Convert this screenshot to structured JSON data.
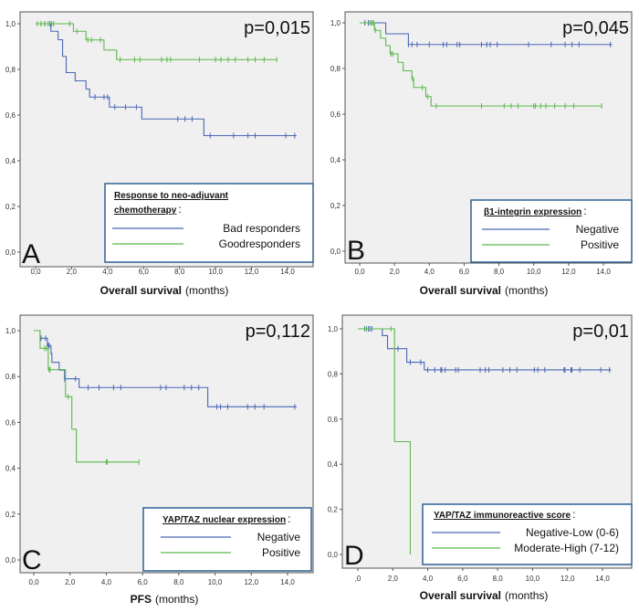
{
  "colors": {
    "series_1": "#4a66b5",
    "series_2": "#5cb84a",
    "plot_bg": "#f0f0f0",
    "legend_border": "#2e6095"
  },
  "chart_data": [
    {
      "type": "line",
      "subtype": "kaplan-meier step",
      "panel_letter": "A",
      "p_value": "p=0,015",
      "xlabel_bold": "Overall survival",
      "xlabel_unit": "(months)",
      "xlim": [
        0,
        15.5
      ],
      "ylim": [
        0,
        1
      ],
      "x_ticks": [
        "0,0",
        "2,0",
        "4,0",
        "6,0",
        "8,0",
        "10,0",
        "12,0",
        "14,0"
      ],
      "y_ticks": [
        "0,0",
        "0,2",
        "0,4",
        "0,6",
        "0,8",
        "1,0"
      ],
      "legend_title": [
        "Response to neo-adjuvant",
        "chemotherapy"
      ],
      "legend_title_suffix": ":",
      "series": [
        {
          "name": "Bad responders",
          "color": "#4a66b5",
          "steps": [
            [
              0,
              1
            ],
            [
              0.85,
              0.967
            ],
            [
              1.25,
              0.93
            ],
            [
              1.5,
              0.857
            ],
            [
              1.7,
              0.786
            ],
            [
              2.2,
              0.75
            ],
            [
              2.8,
              0.714
            ],
            [
              3.0,
              0.679
            ],
            [
              4.1,
              0.635
            ],
            [
              5.9,
              0.583
            ],
            [
              9.35,
              0.51
            ],
            [
              14.5,
              0.51
            ]
          ],
          "censored": [
            [
              0.3,
              1
            ],
            [
              0.5,
              1
            ],
            [
              0.8,
              1
            ],
            [
              3.3,
              0.679
            ],
            [
              3.8,
              0.679
            ],
            [
              4.0,
              0.679
            ],
            [
              4.4,
              0.635
            ],
            [
              5.0,
              0.635
            ],
            [
              5.6,
              0.635
            ],
            [
              7.9,
              0.583
            ],
            [
              8.3,
              0.583
            ],
            [
              8.7,
              0.583
            ],
            [
              9.7,
              0.51
            ],
            [
              11.0,
              0.51
            ],
            [
              11.8,
              0.51
            ],
            [
              12.2,
              0.51
            ],
            [
              13.9,
              0.51
            ],
            [
              14.4,
              0.51
            ]
          ]
        },
        {
          "name": "Goodresponders",
          "color": "#5cb84a",
          "steps": [
            [
              0,
              1
            ],
            [
              2.1,
              0.967
            ],
            [
              2.8,
              0.929
            ],
            [
              3.8,
              0.885
            ],
            [
              4.5,
              0.843
            ],
            [
              13.4,
              0.843
            ]
          ],
          "censored": [
            [
              0.1,
              1
            ],
            [
              0.3,
              1
            ],
            [
              0.5,
              1
            ],
            [
              0.7,
              1
            ],
            [
              0.9,
              1
            ],
            [
              1.0,
              1
            ],
            [
              1.9,
              1
            ],
            [
              2.3,
              0.967
            ],
            [
              2.9,
              0.929
            ],
            [
              3.1,
              0.929
            ],
            [
              3.6,
              0.929
            ],
            [
              4.7,
              0.843
            ],
            [
              5.5,
              0.843
            ],
            [
              5.8,
              0.843
            ],
            [
              7.0,
              0.843
            ],
            [
              7.3,
              0.843
            ],
            [
              7.5,
              0.843
            ],
            [
              9.1,
              0.843
            ],
            [
              10.0,
              0.843
            ],
            [
              10.3,
              0.843
            ],
            [
              10.7,
              0.843
            ],
            [
              11.1,
              0.843
            ],
            [
              11.8,
              0.843
            ],
            [
              12.2,
              0.843
            ],
            [
              12.7,
              0.843
            ],
            [
              13.4,
              0.843
            ]
          ]
        }
      ]
    },
    {
      "type": "line",
      "subtype": "kaplan-meier step",
      "panel_letter": "B",
      "p_value": "p=0,045",
      "xlabel_bold": "Overall survival",
      "xlabel_unit": "(months)",
      "xlim": [
        0,
        15.5
      ],
      "ylim": [
        0,
        1
      ],
      "x_ticks": [
        "0,0",
        "2,0",
        "4,0",
        "6,0",
        "8,0",
        "10,0",
        "12,0",
        "14,0"
      ],
      "y_ticks": [
        "0,0",
        "0,2",
        "0,4",
        "0,6",
        "0,8",
        "1,0"
      ],
      "legend_title": [
        "β1-integrin expression"
      ],
      "legend_title_suffix": ":",
      "series": [
        {
          "name": "Negative",
          "color": "#4a66b5",
          "steps": [
            [
              0,
              1
            ],
            [
              1.5,
              0.952
            ],
            [
              2.8,
              0.905
            ],
            [
              14.5,
              0.905
            ]
          ],
          "censored": [
            [
              0.3,
              1
            ],
            [
              0.5,
              1
            ],
            [
              0.7,
              1
            ],
            [
              0.8,
              1
            ],
            [
              2.8,
              0.905
            ],
            [
              3.0,
              0.905
            ],
            [
              3.3,
              0.905
            ],
            [
              4.0,
              0.905
            ],
            [
              4.8,
              0.905
            ],
            [
              5.0,
              0.905
            ],
            [
              5.6,
              0.905
            ],
            [
              5.75,
              0.905
            ],
            [
              7.0,
              0.905
            ],
            [
              7.3,
              0.905
            ],
            [
              7.5,
              0.905
            ],
            [
              7.9,
              0.905
            ],
            [
              9.7,
              0.905
            ],
            [
              11.0,
              0.905
            ],
            [
              11.8,
              0.905
            ],
            [
              12.2,
              0.905
            ],
            [
              12.6,
              0.905
            ],
            [
              14.4,
              0.905
            ]
          ]
        },
        {
          "name": "Positive",
          "color": "#5cb84a",
          "steps": [
            [
              0,
              1
            ],
            [
              0.85,
              0.967
            ],
            [
              1.2,
              0.933
            ],
            [
              1.5,
              0.9
            ],
            [
              1.75,
              0.864
            ],
            [
              2.2,
              0.827
            ],
            [
              2.5,
              0.79
            ],
            [
              3.0,
              0.755
            ],
            [
              3.1,
              0.717
            ],
            [
              3.8,
              0.677
            ],
            [
              4.1,
              0.636
            ],
            [
              13.9,
              0.636
            ]
          ],
          "censored": [
            [
              0.6,
              1
            ],
            [
              0.7,
              1
            ],
            [
              0.8,
              1
            ],
            [
              0.9,
              0.967
            ],
            [
              1.8,
              0.864
            ],
            [
              1.9,
              0.864
            ],
            [
              3.05,
              0.755
            ],
            [
              3.6,
              0.717
            ],
            [
              3.9,
              0.677
            ],
            [
              4.4,
              0.636
            ],
            [
              7.0,
              0.636
            ],
            [
              8.3,
              0.636
            ],
            [
              8.7,
              0.636
            ],
            [
              9.1,
              0.636
            ],
            [
              10.0,
              0.636
            ],
            [
              10.1,
              0.636
            ],
            [
              10.4,
              0.636
            ],
            [
              10.7,
              0.636
            ],
            [
              11.2,
              0.636
            ],
            [
              11.8,
              0.636
            ],
            [
              12.3,
              0.636
            ],
            [
              13.9,
              0.636
            ]
          ]
        }
      ]
    },
    {
      "type": "line",
      "subtype": "kaplan-meier step",
      "panel_letter": "C",
      "p_value": "p=0,112",
      "xlabel_bold": "PFS",
      "xlabel_unit": "(months)",
      "xlim": [
        0,
        15.5
      ],
      "ylim": [
        0,
        1
      ],
      "x_ticks": [
        "0,0",
        "2,0",
        "4,0",
        "6,0",
        "8,0",
        "10,0",
        "12,0",
        "14,0"
      ],
      "y_ticks": [
        "0,0",
        "0,2",
        "0,4",
        "0,6",
        "0,8",
        "1,0"
      ],
      "legend_title": [
        "YAP/TAZ nuclear expression"
      ],
      "legend_title_suffix": ":",
      "series": [
        {
          "name": "Negative",
          "color": "#4a66b5",
          "steps": [
            [
              0,
              1
            ],
            [
              0.35,
              0.967
            ],
            [
              0.75,
              0.935
            ],
            [
              0.95,
              0.9
            ],
            [
              1.0,
              0.862
            ],
            [
              1.4,
              0.828
            ],
            [
              1.7,
              0.79
            ],
            [
              2.5,
              0.752
            ],
            [
              9.6,
              0.668
            ],
            [
              14.5,
              0.668
            ]
          ],
          "censored": [
            [
              0.4,
              0.967
            ],
            [
              0.65,
              0.967
            ],
            [
              0.8,
              0.935
            ],
            [
              0.85,
              0.935
            ],
            [
              1.7,
              0.79
            ],
            [
              2.3,
              0.79
            ],
            [
              3.0,
              0.752
            ],
            [
              3.6,
              0.752
            ],
            [
              4.4,
              0.752
            ],
            [
              4.8,
              0.752
            ],
            [
              7.0,
              0.752
            ],
            [
              7.3,
              0.752
            ],
            [
              8.3,
              0.752
            ],
            [
              8.7,
              0.752
            ],
            [
              9.1,
              0.752
            ],
            [
              10.1,
              0.668
            ],
            [
              10.3,
              0.668
            ],
            [
              10.7,
              0.668
            ],
            [
              11.8,
              0.668
            ],
            [
              12.2,
              0.668
            ],
            [
              12.7,
              0.668
            ],
            [
              14.4,
              0.668
            ]
          ]
        },
        {
          "name": "Positive",
          "color": "#5cb84a",
          "steps": [
            [
              0,
              1
            ],
            [
              0.35,
              0.923
            ],
            [
              0.8,
              0.83
            ],
            [
              1.75,
              0.712
            ],
            [
              2.1,
              0.57
            ],
            [
              2.35,
              0.427
            ],
            [
              5.8,
              0.427
            ]
          ],
          "censored": [
            [
              0.6,
              0.923
            ],
            [
              0.7,
              0.923
            ],
            [
              0.85,
              0.83
            ],
            [
              0.9,
              0.83
            ],
            [
              1.9,
              0.712
            ],
            [
              4.0,
              0.427
            ],
            [
              4.05,
              0.427
            ],
            [
              5.8,
              0.427
            ]
          ]
        }
      ]
    },
    {
      "type": "line",
      "subtype": "kaplan-meier step",
      "panel_letter": "D",
      "p_value": "p=0,01",
      "xlabel_bold": "Overall survival",
      "xlabel_unit": "(months)",
      "xlim": [
        0,
        15.5
      ],
      "ylim": [
        0,
        1
      ],
      "x_ticks": [
        ",0",
        "2,0",
        "4,0",
        "6,0",
        "8,0",
        "10,0",
        "12,0",
        "14,0"
      ],
      "y_ticks": [
        "0,0",
        "0,2",
        "0,4",
        "0,6",
        "0,8",
        "1,0"
      ],
      "legend_title": [
        "YAP/TAZ immunoreactive score"
      ],
      "legend_title_suffix": ":",
      "series": [
        {
          "name": "Negative-Low (0-6)",
          "color": "#4a66b5",
          "steps": [
            [
              0,
              1
            ],
            [
              1.4,
              0.97
            ],
            [
              1.7,
              0.912
            ],
            [
              2.8,
              0.852
            ],
            [
              3.8,
              0.818
            ],
            [
              14.5,
              0.818
            ]
          ],
          "censored": [
            [
              0.4,
              1
            ],
            [
              0.6,
              1
            ],
            [
              0.7,
              1
            ],
            [
              0.8,
              1
            ],
            [
              2.3,
              0.912
            ],
            [
              3.0,
              0.852
            ],
            [
              3.6,
              0.852
            ],
            [
              4.0,
              0.818
            ],
            [
              4.4,
              0.818
            ],
            [
              4.75,
              0.818
            ],
            [
              4.8,
              0.818
            ],
            [
              5.0,
              0.818
            ],
            [
              5.6,
              0.818
            ],
            [
              5.75,
              0.818
            ],
            [
              7.0,
              0.818
            ],
            [
              7.3,
              0.818
            ],
            [
              7.5,
              0.818
            ],
            [
              8.3,
              0.818
            ],
            [
              8.7,
              0.818
            ],
            [
              9.1,
              0.818
            ],
            [
              10.1,
              0.818
            ],
            [
              10.3,
              0.818
            ],
            [
              10.7,
              0.818
            ],
            [
              11.8,
              0.818
            ],
            [
              11.85,
              0.818
            ],
            [
              12.2,
              0.818
            ],
            [
              12.25,
              0.818
            ],
            [
              12.7,
              0.818
            ],
            [
              13.9,
              0.818
            ],
            [
              14.4,
              0.818
            ]
          ]
        },
        {
          "name": "Moderate-High (7-12)",
          "color": "#5cb84a",
          "steps": [
            [
              0,
              1
            ],
            [
              2.1,
              0.5
            ],
            [
              3.0,
              0
            ],
            [
              3.0,
              0
            ]
          ],
          "censored": [
            [
              0.5,
              1
            ],
            [
              1.9,
              1
            ]
          ]
        }
      ]
    }
  ]
}
